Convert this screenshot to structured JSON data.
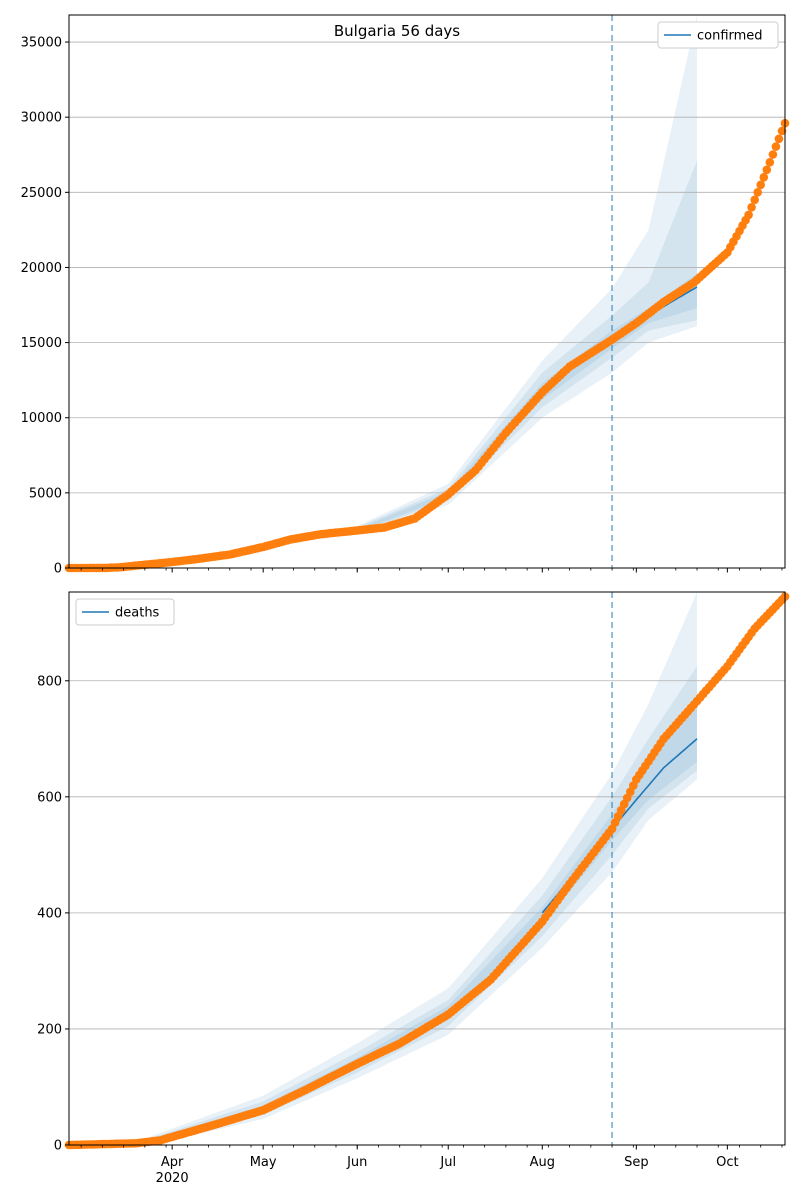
{
  "chart_data": [
    {
      "type": "line",
      "title": "Bulgaria 56 days",
      "xlabel": "",
      "ylabel": "",
      "x_axis": {
        "start": "2020-02-27",
        "end": "2020-10-20",
        "month_ticks": [
          {
            "date": "2020-04-01",
            "label": "Apr",
            "sublabel": "2020"
          },
          {
            "date": "2020-05-01",
            "label": "May",
            "sublabel": ""
          },
          {
            "date": "2020-06-01",
            "label": "Jun",
            "sublabel": ""
          },
          {
            "date": "2020-07-01",
            "label": "Jul",
            "sublabel": ""
          },
          {
            "date": "2020-08-01",
            "label": "Aug",
            "sublabel": ""
          },
          {
            "date": "2020-09-01",
            "label": "Sep",
            "sublabel": ""
          },
          {
            "date": "2020-10-01",
            "label": "Oct",
            "sublabel": ""
          }
        ]
      },
      "ylim": [
        0,
        36800
      ],
      "yticks": [
        0,
        5000,
        10000,
        15000,
        20000,
        25000,
        30000,
        35000
      ],
      "grid": "horizontal",
      "legend": {
        "position": "top-right",
        "entries": [
          {
            "label": "confirmed",
            "color": "#1f77b4"
          }
        ]
      },
      "forecast_start": "2020-08-24",
      "forecast_end": "2020-09-21",
      "colors": {
        "observed": "#ff7f0e",
        "forecast": "#1f77b4",
        "band": "#1f77b4"
      },
      "observed_series": [
        {
          "date": "2020-02-27",
          "value": 0
        },
        {
          "date": "2020-03-10",
          "value": 6
        },
        {
          "date": "2020-03-15",
          "value": 50
        },
        {
          "date": "2020-03-20",
          "value": 160
        },
        {
          "date": "2020-03-25",
          "value": 260
        },
        {
          "date": "2020-04-01",
          "value": 400
        },
        {
          "date": "2020-04-10",
          "value": 620
        },
        {
          "date": "2020-04-20",
          "value": 900
        },
        {
          "date": "2020-05-01",
          "value": 1400
        },
        {
          "date": "2020-05-10",
          "value": 1900
        },
        {
          "date": "2020-05-20",
          "value": 2250
        },
        {
          "date": "2020-06-01",
          "value": 2500
        },
        {
          "date": "2020-06-10",
          "value": 2700
        },
        {
          "date": "2020-06-20",
          "value": 3300
        },
        {
          "date": "2020-07-01",
          "value": 4900
        },
        {
          "date": "2020-07-10",
          "value": 6500
        },
        {
          "date": "2020-07-20",
          "value": 9000
        },
        {
          "date": "2020-08-01",
          "value": 11700
        },
        {
          "date": "2020-08-10",
          "value": 13400
        },
        {
          "date": "2020-08-24",
          "value": 15200
        },
        {
          "date": "2020-09-01",
          "value": 16300
        },
        {
          "date": "2020-09-10",
          "value": 17700
        },
        {
          "date": "2020-09-20",
          "value": 19000
        },
        {
          "date": "2020-10-01",
          "value": 21000
        },
        {
          "date": "2020-10-08",
          "value": 23500
        },
        {
          "date": "2020-10-15",
          "value": 27000
        },
        {
          "date": "2020-10-20",
          "value": 29600
        }
      ],
      "forecast_series": [
        {
          "date": "2020-08-24",
          "value": 15200
        },
        {
          "date": "2020-09-01",
          "value": 16300
        },
        {
          "date": "2020-09-10",
          "value": 17400
        },
        {
          "date": "2020-09-21",
          "value": 18700
        }
      ],
      "uncertainty_bands": [
        {
          "level": "outer",
          "points": [
            {
              "date": "2020-06-01",
              "lo": 2200,
              "hi": 2800
            },
            {
              "date": "2020-07-01",
              "lo": 4200,
              "hi": 5600
            },
            {
              "date": "2020-08-01",
              "lo": 10000,
              "hi": 13800
            },
            {
              "date": "2020-08-24",
              "lo": 13000,
              "hi": 18600
            },
            {
              "date": "2020-09-05",
              "lo": 15000,
              "hi": 22500
            },
            {
              "date": "2020-09-21",
              "lo": 16100,
              "hi": 36800
            }
          ]
        },
        {
          "level": "middle",
          "points": [
            {
              "date": "2020-06-01",
              "lo": 2300,
              "hi": 2700
            },
            {
              "date": "2020-07-01",
              "lo": 4500,
              "hi": 5300
            },
            {
              "date": "2020-08-01",
              "lo": 10700,
              "hi": 13000
            },
            {
              "date": "2020-08-24",
              "lo": 14000,
              "hi": 16800
            },
            {
              "date": "2020-09-05",
              "lo": 15800,
              "hi": 19000
            },
            {
              "date": "2020-09-21",
              "lo": 16500,
              "hi": 27100
            }
          ]
        },
        {
          "level": "inner",
          "points": [
            {
              "date": "2020-06-01",
              "lo": 2400,
              "hi": 2600
            },
            {
              "date": "2020-07-01",
              "lo": 4700,
              "hi": 5100
            },
            {
              "date": "2020-08-01",
              "lo": 11200,
              "hi": 12300
            },
            {
              "date": "2020-08-24",
              "lo": 14600,
              "hi": 15800
            },
            {
              "date": "2020-09-05",
              "lo": 16300,
              "hi": 17300
            },
            {
              "date": "2020-09-21",
              "lo": 17300,
              "hi": 19600
            }
          ]
        }
      ]
    },
    {
      "type": "line",
      "title": "",
      "xlabel": "",
      "ylabel": "",
      "x_axis": {
        "start": "2020-02-27",
        "end": "2020-10-20",
        "month_ticks": [
          {
            "date": "2020-04-01",
            "label": "Apr",
            "sublabel": "2020"
          },
          {
            "date": "2020-05-01",
            "label": "May",
            "sublabel": ""
          },
          {
            "date": "2020-06-01",
            "label": "Jun",
            "sublabel": ""
          },
          {
            "date": "2020-07-01",
            "label": "Jul",
            "sublabel": ""
          },
          {
            "date": "2020-08-01",
            "label": "Aug",
            "sublabel": ""
          },
          {
            "date": "2020-09-01",
            "label": "Sep",
            "sublabel": ""
          },
          {
            "date": "2020-10-01",
            "label": "Oct",
            "sublabel": ""
          }
        ]
      },
      "ylim": [
        0,
        953
      ],
      "yticks": [
        0,
        200,
        400,
        600,
        800
      ],
      "grid": "horizontal",
      "legend": {
        "position": "top-left",
        "entries": [
          {
            "label": "deaths",
            "color": "#1f77b4"
          }
        ]
      },
      "forecast_start": "2020-08-24",
      "forecast_end": "2020-09-21",
      "colors": {
        "observed": "#ff7f0e",
        "forecast": "#1f77b4",
        "band": "#1f77b4"
      },
      "observed_series": [
        {
          "date": "2020-02-27",
          "value": 0
        },
        {
          "date": "2020-03-20",
          "value": 3
        },
        {
          "date": "2020-03-28",
          "value": 8
        },
        {
          "date": "2020-04-05",
          "value": 20
        },
        {
          "date": "2020-04-15",
          "value": 35
        },
        {
          "date": "2020-05-01",
          "value": 60
        },
        {
          "date": "2020-05-15",
          "value": 95
        },
        {
          "date": "2020-06-01",
          "value": 140
        },
        {
          "date": "2020-06-15",
          "value": 175
        },
        {
          "date": "2020-07-01",
          "value": 225
        },
        {
          "date": "2020-07-15",
          "value": 285
        },
        {
          "date": "2020-08-01",
          "value": 385
        },
        {
          "date": "2020-08-10",
          "value": 450
        },
        {
          "date": "2020-08-24",
          "value": 545
        },
        {
          "date": "2020-09-01",
          "value": 630
        },
        {
          "date": "2020-09-10",
          "value": 700
        },
        {
          "date": "2020-09-21",
          "value": 765
        },
        {
          "date": "2020-10-01",
          "value": 825
        },
        {
          "date": "2020-10-10",
          "value": 890
        },
        {
          "date": "2020-10-20",
          "value": 945
        }
      ],
      "forecast_series": [
        {
          "date": "2020-08-01",
          "value": 400
        },
        {
          "date": "2020-08-24",
          "value": 545
        },
        {
          "date": "2020-09-01",
          "value": 595
        },
        {
          "date": "2020-09-10",
          "value": 650
        },
        {
          "date": "2020-09-21",
          "value": 700
        }
      ],
      "uncertainty_bands": [
        {
          "level": "outer",
          "points": [
            {
              "date": "2020-03-25",
              "lo": 0,
              "hi": 15
            },
            {
              "date": "2020-05-01",
              "lo": 45,
              "hi": 85
            },
            {
              "date": "2020-06-01",
              "lo": 115,
              "hi": 175
            },
            {
              "date": "2020-07-01",
              "lo": 190,
              "hi": 270
            },
            {
              "date": "2020-08-01",
              "lo": 340,
              "hi": 460
            },
            {
              "date": "2020-08-24",
              "lo": 470,
              "hi": 640
            },
            {
              "date": "2020-09-05",
              "lo": 560,
              "hi": 760
            },
            {
              "date": "2020-09-21",
              "lo": 630,
              "hi": 953
            }
          ]
        },
        {
          "level": "middle",
          "points": [
            {
              "date": "2020-03-25",
              "lo": 2,
              "hi": 12
            },
            {
              "date": "2020-05-01",
              "lo": 52,
              "hi": 75
            },
            {
              "date": "2020-06-01",
              "lo": 125,
              "hi": 160
            },
            {
              "date": "2020-07-01",
              "lo": 205,
              "hi": 250
            },
            {
              "date": "2020-08-01",
              "lo": 360,
              "hi": 430
            },
            {
              "date": "2020-08-24",
              "lo": 500,
              "hi": 600
            },
            {
              "date": "2020-09-05",
              "lo": 580,
              "hi": 700
            },
            {
              "date": "2020-09-21",
              "lo": 645,
              "hi": 825
            }
          ]
        },
        {
          "level": "inner",
          "points": [
            {
              "date": "2020-03-25",
              "lo": 4,
              "hi": 10
            },
            {
              "date": "2020-05-01",
              "lo": 58,
              "hi": 68
            },
            {
              "date": "2020-06-01",
              "lo": 135,
              "hi": 150
            },
            {
              "date": "2020-07-01",
              "lo": 220,
              "hi": 240
            },
            {
              "date": "2020-08-01",
              "lo": 380,
              "hi": 410
            },
            {
              "date": "2020-08-24",
              "lo": 525,
              "hi": 570
            },
            {
              "date": "2020-09-05",
              "lo": 595,
              "hi": 660
            },
            {
              "date": "2020-09-21",
              "lo": 660,
              "hi": 760
            }
          ]
        }
      ]
    }
  ]
}
